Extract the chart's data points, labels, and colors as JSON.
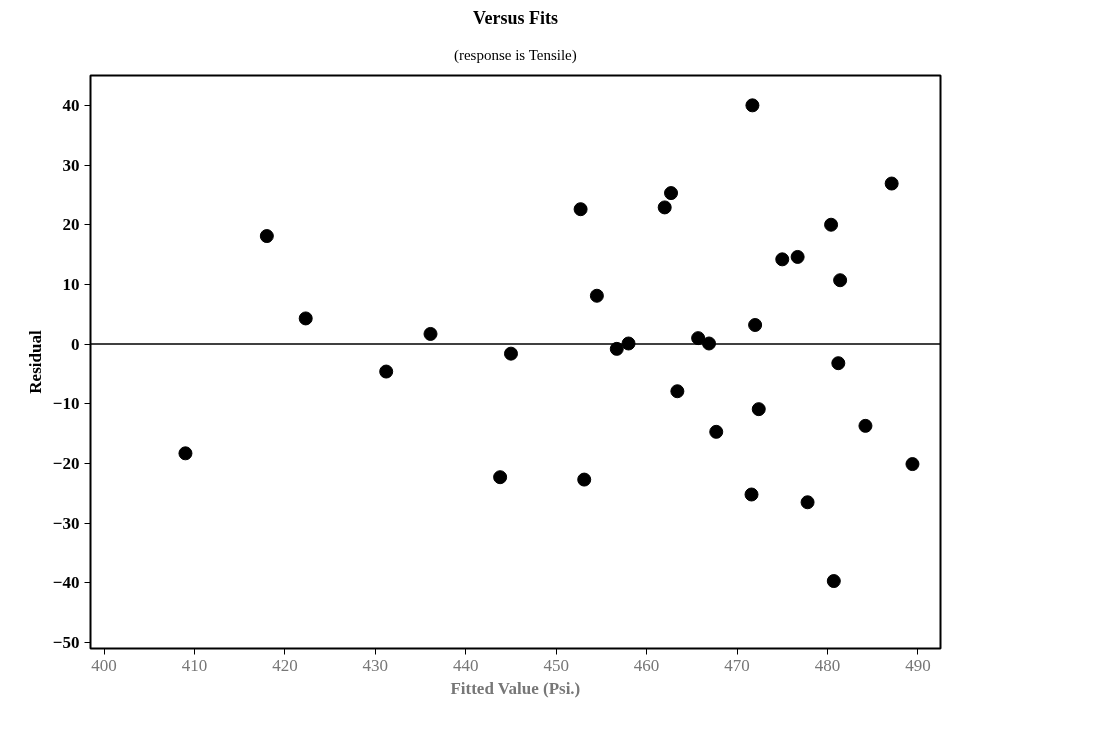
{
  "chart_data": {
    "type": "scatter",
    "title": "Versus Fits",
    "subtitle": "(response is Tensile)",
    "xlabel": "Fitted Value (Psi.)",
    "ylabel": "Residual",
    "x": [
      409.0,
      418.0,
      422.3,
      431.2,
      436.1,
      443.8,
      445.0,
      452.7,
      453.1,
      454.5,
      456.7,
      458.0,
      462.0,
      462.7,
      463.4,
      465.7,
      466.9,
      467.7,
      471.7,
      471.6,
      472.0,
      472.4,
      475.0,
      476.7,
      477.8,
      480.4,
      480.7,
      481.2,
      481.4,
      484.2,
      487.1,
      489.4
    ],
    "series": [
      {
        "color": "#000000",
        "values": [
          -18.3,
          18.1,
          4.3,
          -4.6,
          1.7,
          -22.3,
          -1.6,
          22.6,
          -22.7,
          8.1,
          -0.8,
          0.1,
          22.9,
          25.3,
          -7.9,
          1.0,
          0.1,
          -14.7,
          40.0,
          -25.2,
          3.2,
          -10.9,
          14.2,
          14.6,
          -26.5,
          20.0,
          -39.7,
          -3.2,
          10.7,
          -13.7,
          26.9,
          -20.1
        ]
      }
    ],
    "xlim": [
      398.5,
      492.5
    ],
    "ylim": [
      -51,
      45
    ],
    "xticks": [
      400,
      410,
      420,
      430,
      440,
      450,
      460,
      470,
      480,
      490
    ],
    "yticks": [
      -50,
      -40,
      -30,
      -20,
      -10,
      0,
      10,
      20,
      30,
      40
    ],
    "ref_lines": [
      {
        "axis": "y",
        "value": 0,
        "color": "#000000"
      }
    ],
    "marker": "circle",
    "grid": false
  }
}
